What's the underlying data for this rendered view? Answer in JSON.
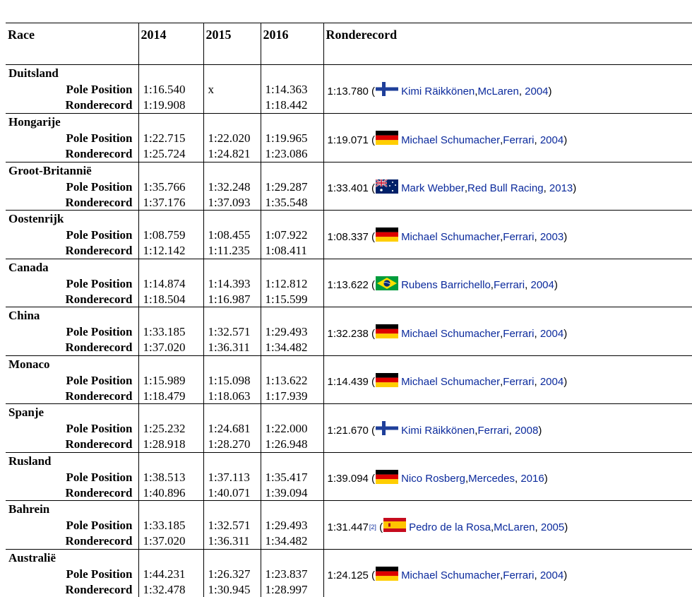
{
  "header": {
    "race": "Race",
    "y2014": "2014",
    "y2015": "2015",
    "y2016": "2016",
    "record": "Ronderecord"
  },
  "labels": {
    "pole": "Pole Position",
    "lap": "Ronderecord",
    "missing": "x"
  },
  "races": [
    {
      "name": "Duitsland",
      "p2014": "1:16.540",
      "l2014": "1:19.908",
      "p2015": "x",
      "l2015": "",
      "p2016": "1:14.363",
      "l2016": "1:18.442",
      "rec_time": "1:13.780",
      "flag": "finland",
      "driver": "Kimi Räikkönen",
      "team": "McLaren",
      "sep": ",",
      "year": "2004",
      "note": ""
    },
    {
      "name": "Hongarije",
      "p2014": "1:22.715",
      "l2014": "1:25.724",
      "p2015": "1:22.020",
      "l2015": "1:24.821",
      "p2016": "1:19.965",
      "l2016": "1:23.086",
      "rec_time": "1:19.071",
      "flag": "germany",
      "driver": "Michael Schumacher",
      "team": "Ferrari",
      "sep": ",",
      "year": "2004",
      "note": ""
    },
    {
      "name": "Groot-Britannië",
      "p2014": "1:35.766",
      "l2014": "1:37.176",
      "p2015": "1:32.248",
      "l2015": "1:37.093",
      "p2016": "1:29.287",
      "l2016": "1:35.548",
      "rec_time": "1:33.401",
      "flag": "australia",
      "driver": "Mark Webber",
      "team": "Red Bull Racing",
      "sep": ",",
      "year": "2013",
      "note": ""
    },
    {
      "name": "Oostenrijk",
      "p2014": "1:08.759",
      "l2014": "1:12.142",
      "p2015": "1:08.455",
      "l2015": "1:11.235",
      "p2016": "1:07.922",
      "l2016": "1:08.411",
      "rec_time": "1:08.337",
      "flag": "germany",
      "driver": "Michael Schumacher",
      "team": "Ferrari",
      "sep": ",",
      "year": "2003",
      "note": ""
    },
    {
      "name": "Canada",
      "p2014": "1:14.874",
      "l2014": "1:18.504",
      "p2015": "1:14.393",
      "l2015": "1:16.987",
      "p2016": "1:12.812",
      "l2016": "1:15.599",
      "rec_time": "1:13.622",
      "flag": "brazil",
      "driver": "Rubens Barrichello",
      "team": "Ferrari",
      "sep": ", ",
      "year": "2004",
      "note": ""
    },
    {
      "name": "China",
      "p2014": "1:33.185",
      "l2014": "1:37.020",
      "p2015": "1:32.571",
      "l2015": "1:36.311",
      "p2016": "1:29.493",
      "l2016": "1:34.482",
      "rec_time": "1:32.238",
      "flag": "germany",
      "driver": "Michael Schumacher",
      "team": "Ferrari",
      "sep": ", ",
      "year": "2004",
      "note": ""
    },
    {
      "name": "Monaco",
      "p2014": "1:15.989",
      "l2014": "1:18.479",
      "p2015": "1:15.098",
      "l2015": "1:18.063",
      "p2016": "1:13.622",
      "l2016": "1:17.939",
      "rec_time": "1:14.439",
      "flag": "germany",
      "driver": "Michael Schumacher",
      "team": "Ferrari",
      "sep": ", ",
      "year": "2004",
      "note": ""
    },
    {
      "name": "Spanje",
      "p2014": "1:25.232",
      "l2014": "1:28.918",
      "p2015": "1:24.681",
      "l2015": "1:28.270",
      "p2016": "1:22.000",
      "l2016": "1:26.948",
      "rec_time": "1:21.670",
      "flag": "finland",
      "driver": "Kimi Räikkönen",
      "team": "Ferrari",
      "sep": ", ",
      "year": "2008",
      "note": ""
    },
    {
      "name": "Rusland",
      "p2014": "1:38.513",
      "l2014": "1:40.896",
      "p2015": "1:37.113",
      "l2015": "1:40.071",
      "p2016": "1:35.417",
      "l2016": "1:39.094",
      "rec_time": "1:39.094",
      "flag": "germany",
      "driver": "Nico Rosberg",
      "team": "Mercedes",
      "sep": ",",
      "year": "2016",
      "note": ""
    },
    {
      "name": "Bahrein",
      "p2014": "1:33.185",
      "l2014": "1:37.020",
      "p2015": "1:32.571",
      "l2015": "1:36.311",
      "p2016": "1:29.493",
      "l2016": "1:34.482",
      "rec_time": "1:31.447",
      "flag": "spain",
      "driver": "Pedro de la Rosa",
      "team": "McLaren",
      "sep": ", ",
      "year": "2005",
      "note": "[2]"
    },
    {
      "name": "Australië",
      "p2014": "1:44.231",
      "l2014": "1:32.478",
      "p2015": "1:26.327",
      "l2015": "1:30.945",
      "p2016": "1:23.837",
      "l2016": "1:28.997",
      "rec_time": "1:24.125",
      "flag": "germany",
      "driver": "Michael Schumacher",
      "team": "Ferrari",
      "sep": ", ",
      "year": "2004",
      "note": ""
    }
  ],
  "colors": {
    "link": "#0b2a9c",
    "border": "#000000"
  }
}
